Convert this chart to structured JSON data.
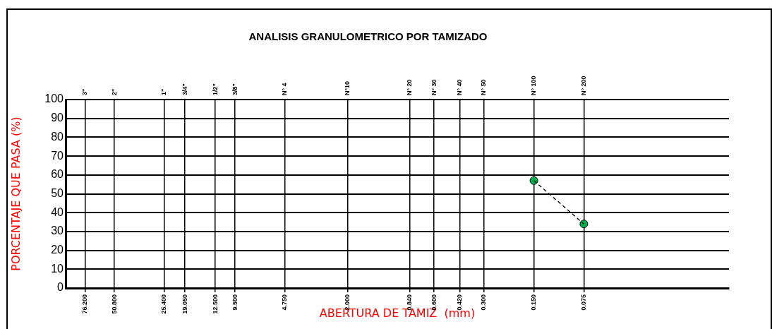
{
  "chart_data": {
    "type": "scatter",
    "title": "ANALISIS GRANULOMETRICO POR TAMIZADO",
    "xlabel": "ABERTURA DE TAMIZ  (mm)",
    "ylabel": "PORCENTAJE QUE PASA (%)",
    "log": "x",
    "xlim": [
      100,
      0.01
    ],
    "ylim": [
      0,
      100
    ],
    "xticks": [
      {
        "value": 76.2,
        "label": "76.200"
      },
      {
        "value": 50.8,
        "label": "50.800"
      },
      {
        "value": 12.5,
        "label": "12.500"
      },
      {
        "value": 25.4,
        "label": "25.400"
      },
      {
        "value": 19.05,
        "label": "19.050"
      },
      {
        "value": 9.5,
        "label": "9.500"
      },
      {
        "value": 4.75,
        "label": "4.750"
      },
      {
        "value": 2,
        "label": "2.000"
      },
      {
        "value": 0.84,
        "label": "0.840"
      },
      {
        "value": 0.6,
        "label": "0.600"
      },
      {
        "value": 0.42,
        "label": "0.420"
      },
      {
        "value": 0.3,
        "label": "0.300"
      },
      {
        "value": 0.15,
        "label": "0.150"
      },
      {
        "value": 0.075,
        "label": "0.075"
      }
    ],
    "annotations": [
      "3\"",
      "2\"",
      "1/2\"",
      "1\"",
      "3/4\"",
      "3/8\"",
      "N° 4",
      "N°10",
      "N° 20",
      "N° 30",
      "N° 40",
      "N° 50",
      "N° 100",
      "N° 200"
    ],
    "x": [
      0.15,
      0.075
    ],
    "yticks": [
      0,
      10,
      20,
      30,
      40,
      50,
      60,
      70,
      80,
      90,
      100
    ],
    "grid": true,
    "legend": false,
    "marker": "circle",
    "line_style": "dashed",
    "series": [
      {
        "type": "line",
        "color": "#000000",
        "marker": "none",
        "values": [
          57,
          34
        ]
      },
      {
        "color": "#00b050",
        "values": [
          57,
          34
        ]
      }
    ]
  }
}
